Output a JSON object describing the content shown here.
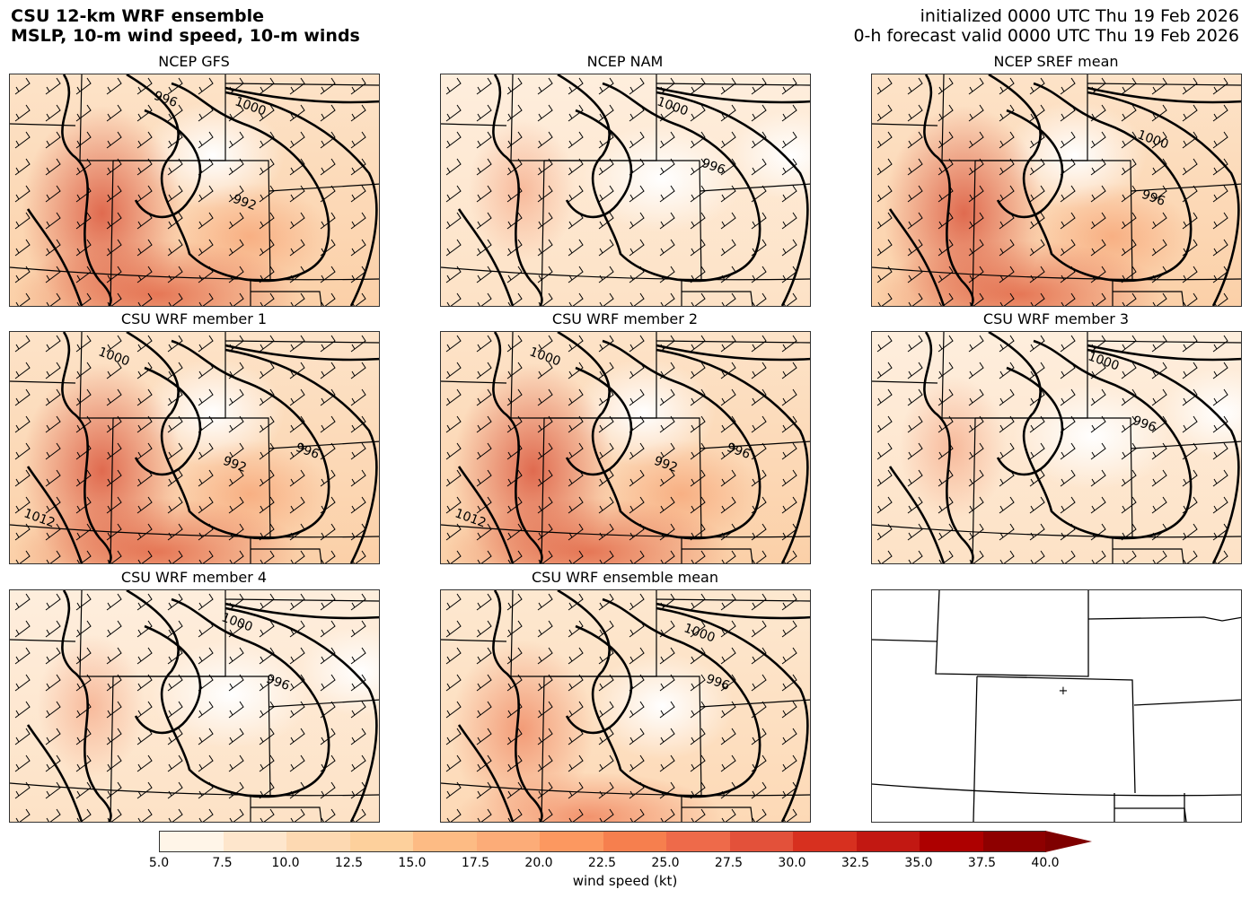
{
  "header": {
    "title_line1": "CSU 12-km WRF ensemble",
    "title_line2": "MSLP, 10-m wind speed, 10-m winds",
    "init_line": "initialized 0000 UTC Thu 19 Feb 2026",
    "valid_line": "0-h forecast valid 0000 UTC Thu 19 Feb 2026"
  },
  "panels": [
    {
      "title": "NCEP GFS",
      "contour_labels": [
        "996",
        "1000",
        "992"
      ],
      "intensity": "high"
    },
    {
      "title": "NCEP NAM",
      "contour_labels": [
        "1000",
        "996"
      ],
      "intensity": "low"
    },
    {
      "title": "NCEP SREF mean",
      "contour_labels": [
        "1000",
        "996"
      ],
      "intensity": "high"
    },
    {
      "title": "CSU WRF member 1",
      "contour_labels": [
        "1000",
        "992",
        "996",
        "1012"
      ],
      "intensity": "high"
    },
    {
      "title": "CSU WRF member 2",
      "contour_labels": [
        "1000",
        "992",
        "996",
        "1012"
      ],
      "intensity": "high"
    },
    {
      "title": "CSU WRF member 3",
      "contour_labels": [
        "1000",
        "996"
      ],
      "intensity": "low"
    },
    {
      "title": "CSU WRF member 4",
      "contour_labels": [
        "1000",
        "996"
      ],
      "intensity": "low"
    },
    {
      "title": "CSU WRF ensemble mean",
      "contour_labels": [
        "1000",
        "996"
      ],
      "intensity": "medium"
    }
  ],
  "colorbar": {
    "label": "wind speed (kt)",
    "ticks": [
      "5.0",
      "7.5",
      "10.0",
      "12.5",
      "15.0",
      "17.5",
      "20.0",
      "22.5",
      "25.0",
      "27.5",
      "30.0",
      "32.5",
      "35.0",
      "37.5",
      "40.0"
    ],
    "colors": [
      "#fff5e8",
      "#fee6cc",
      "#fdd9b2",
      "#fdd09c",
      "#fdbb84",
      "#fcac78",
      "#fc9860",
      "#f67f4e",
      "#ee6a4a",
      "#e3513a",
      "#d7301f",
      "#c21812",
      "#ad0000",
      "#8e0000"
    ],
    "extend": "max",
    "extend_color": "#7f0000"
  }
}
